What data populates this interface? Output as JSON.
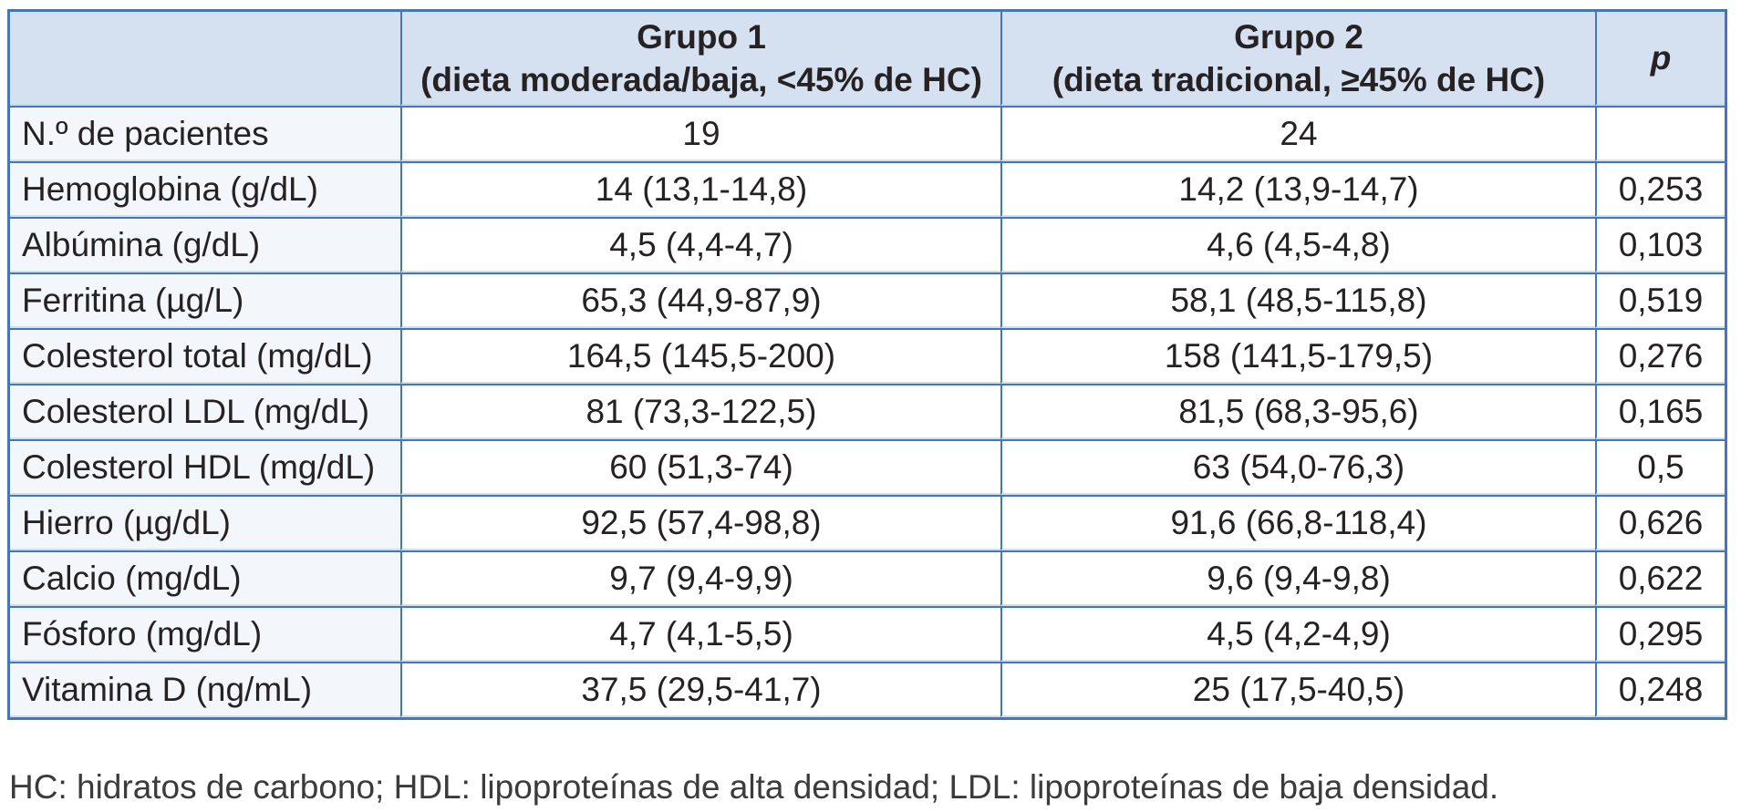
{
  "table": {
    "header": {
      "col_label": "",
      "g1_line1": "Grupo 1",
      "g1_line2": "(dieta moderada/baja, <45% de HC)",
      "g2_line1": "Grupo 2",
      "g2_line2": "(dieta tradicional, ≥45% de HC)",
      "p_label": "p"
    },
    "rows": [
      {
        "label": "N.º de pacientes",
        "g1": "19",
        "g2": "24",
        "p": ""
      },
      {
        "label": "Hemoglobina (g/dL)",
        "g1": "14 (13,1-14,8)",
        "g2": "14,2 (13,9-14,7)",
        "p": "0,253"
      },
      {
        "label": "Albúmina (g/dL)",
        "g1": "4,5 (4,4-4,7)",
        "g2": "4,6 (4,5-4,8)",
        "p": "0,103"
      },
      {
        "label": "Ferritina (µg/L)",
        "g1": "65,3 (44,9-87,9)",
        "g2": "58,1 (48,5-115,8)",
        "p": "0,519"
      },
      {
        "label": "Colesterol total (mg/dL)",
        "g1": "164,5 (145,5-200)",
        "g2": "158 (141,5-179,5)",
        "p": "0,276"
      },
      {
        "label": "Colesterol LDL (mg/dL)",
        "g1": "81 (73,3-122,5)",
        "g2": "81,5 (68,3-95,6)",
        "p": "0,165"
      },
      {
        "label": "Colesterol HDL (mg/dL)",
        "g1": "60 (51,3-74)",
        "g2": "63 (54,0-76,3)",
        "p": "0,5"
      },
      {
        "label": "Hierro (µg/dL)",
        "g1": "92,5 (57,4-98,8)",
        "g2": "91,6 (66,8-118,4)",
        "p": "0,626"
      },
      {
        "label": "Calcio (mg/dL)",
        "g1": "9,7 (9,4-9,9)",
        "g2": "9,6 (9,4-9,8)",
        "p": "0,622"
      },
      {
        "label": "Fósforo (mg/dL)",
        "g1": "4,7 (4,1-5,5)",
        "g2": "4,5 (4,2-4,9)",
        "p": "0,295"
      },
      {
        "label": "Vitamina D (ng/mL)",
        "g1": "37,5 (29,5-41,7)",
        "g2": "25 (17,5-40,5)",
        "p": "0,248"
      }
    ],
    "footnote": "HC: hidratos de carbono; HDL: lipoproteínas de alta densidad; LDL: lipoproteínas de baja densidad."
  },
  "colors": {
    "border_blue": "#4377b5",
    "border_pale_blue": "#cfdff0",
    "header_bg": "#d5e1f0",
    "label_col_bg": "#f3f7fb",
    "text": "#262223"
  }
}
